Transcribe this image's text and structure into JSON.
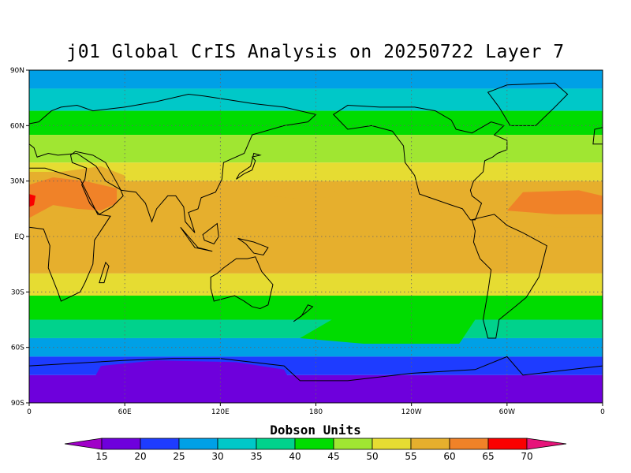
{
  "title": "j01 Global CrIS Analysis on 20250722 Layer 7",
  "map": {
    "projection": "equirectangular",
    "lon_range": [
      0,
      360
    ],
    "lat_range": [
      -90,
      90
    ],
    "grid": "dotted",
    "lat_ticks": [
      {
        "value": 90,
        "label": "90N"
      },
      {
        "value": 60,
        "label": "60N"
      },
      {
        "value": 30,
        "label": "30N"
      },
      {
        "value": 0,
        "label": "EQ"
      },
      {
        "value": -30,
        "label": "30S"
      },
      {
        "value": -60,
        "label": "60S"
      },
      {
        "value": -90,
        "label": "90S"
      }
    ],
    "lon_ticks": [
      {
        "value": 0,
        "label": "0"
      },
      {
        "value": 60,
        "label": "60E"
      },
      {
        "value": 120,
        "label": "120E"
      },
      {
        "value": 180,
        "label": "180"
      },
      {
        "value": 240,
        "label": "120W"
      },
      {
        "value": 300,
        "label": "60W"
      },
      {
        "value": 360,
        "label": "0"
      }
    ]
  },
  "colorbar": {
    "title": "Dobson Units",
    "levels": [
      15,
      20,
      25,
      30,
      35,
      40,
      45,
      50,
      55,
      60,
      65,
      70
    ],
    "colors": [
      "#a000c8",
      "#6e00dc",
      "#1e3cff",
      "#00a0e6",
      "#00c8c8",
      "#00d28c",
      "#00dc00",
      "#a0e632",
      "#e6dc32",
      "#e6af2d",
      "#f08228",
      "#fa0000",
      "#e6147a"
    ]
  },
  "chart_data": {
    "type": "heatmap",
    "title": "j01 Global CrIS Analysis on 20250722 Layer 7",
    "units": "Dobson Units",
    "field_by_latitude": [
      {
        "lat_band": [
          80,
          90
        ],
        "value": 27
      },
      {
        "lat_band": [
          68,
          80
        ],
        "value": 32
      },
      {
        "lat_band": [
          55,
          68
        ],
        "value": 42
      },
      {
        "lat_band": [
          40,
          55
        ],
        "value": 47
      },
      {
        "lat_band": [
          30,
          40
        ],
        "value": 52
      },
      {
        "lat_band": [
          -20,
          30
        ],
        "value": 55
      },
      {
        "lat_band": [
          -32,
          -20
        ],
        "value": 50
      },
      {
        "lat_band": [
          -45,
          -32
        ],
        "value": 42
      },
      {
        "lat_band": [
          -55,
          -45
        ],
        "value": 37
      },
      {
        "lat_band": [
          -65,
          -55
        ],
        "value": 27
      },
      {
        "lat_band": [
          -75,
          -65
        ],
        "value": 22
      },
      {
        "lat_band": [
          -90,
          -75
        ],
        "value": 18
      }
    ],
    "notable_regions": [
      {
        "region": "Sahara / Arabia",
        "value": 62
      },
      {
        "region": "Subtropical North Atlantic",
        "value": 62
      },
      {
        "region": "East Antarctica",
        "value": 17
      },
      {
        "region": "Sub-Saharan Africa",
        "value": 57
      }
    ]
  }
}
